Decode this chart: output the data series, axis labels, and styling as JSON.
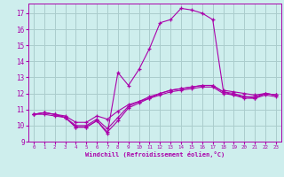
{
  "xlabel": "Windchill (Refroidissement éolien,°C)",
  "bg_color": "#ceeeed",
  "grid_color": "#aacccc",
  "line_color": "#aa00aa",
  "xlim": [
    -0.5,
    23.5
  ],
  "ylim": [
    9,
    17.6
  ],
  "yticks": [
    9,
    10,
    11,
    12,
    13,
    14,
    15,
    16,
    17
  ],
  "xticks": [
    0,
    1,
    2,
    3,
    4,
    5,
    6,
    7,
    8,
    9,
    10,
    11,
    12,
    13,
    14,
    15,
    16,
    17,
    18,
    19,
    20,
    21,
    22,
    23
  ],
  "hours": [
    0,
    1,
    2,
    3,
    4,
    5,
    6,
    7,
    8,
    9,
    10,
    11,
    12,
    13,
    14,
    15,
    16,
    17,
    18,
    19,
    20,
    21,
    22,
    23
  ],
  "line_main": [
    10.7,
    10.8,
    10.7,
    10.5,
    9.9,
    9.9,
    10.3,
    9.5,
    13.3,
    12.5,
    13.5,
    14.8,
    16.4,
    16.6,
    17.3,
    17.2,
    17.0,
    16.6,
    12.2,
    12.1,
    12.0,
    11.9,
    12.0,
    11.9
  ],
  "line_a": [
    10.7,
    10.8,
    10.7,
    10.6,
    10.2,
    10.2,
    10.6,
    10.4,
    10.9,
    11.3,
    11.5,
    11.8,
    12.0,
    12.2,
    12.3,
    12.4,
    12.5,
    12.5,
    12.1,
    11.9,
    11.8,
    11.7,
    12.0,
    11.9
  ],
  "line_b": [
    10.7,
    10.8,
    10.7,
    10.5,
    10.0,
    10.0,
    10.4,
    9.8,
    10.5,
    11.2,
    11.5,
    11.7,
    12.0,
    12.2,
    12.3,
    12.4,
    12.5,
    12.5,
    12.1,
    12.0,
    11.8,
    11.8,
    12.0,
    11.9
  ],
  "line_c": [
    10.7,
    10.7,
    10.6,
    10.5,
    9.9,
    9.9,
    10.3,
    9.6,
    10.3,
    11.1,
    11.4,
    11.7,
    11.9,
    12.1,
    12.2,
    12.3,
    12.4,
    12.4,
    12.0,
    11.9,
    11.7,
    11.7,
    11.9,
    11.8
  ]
}
